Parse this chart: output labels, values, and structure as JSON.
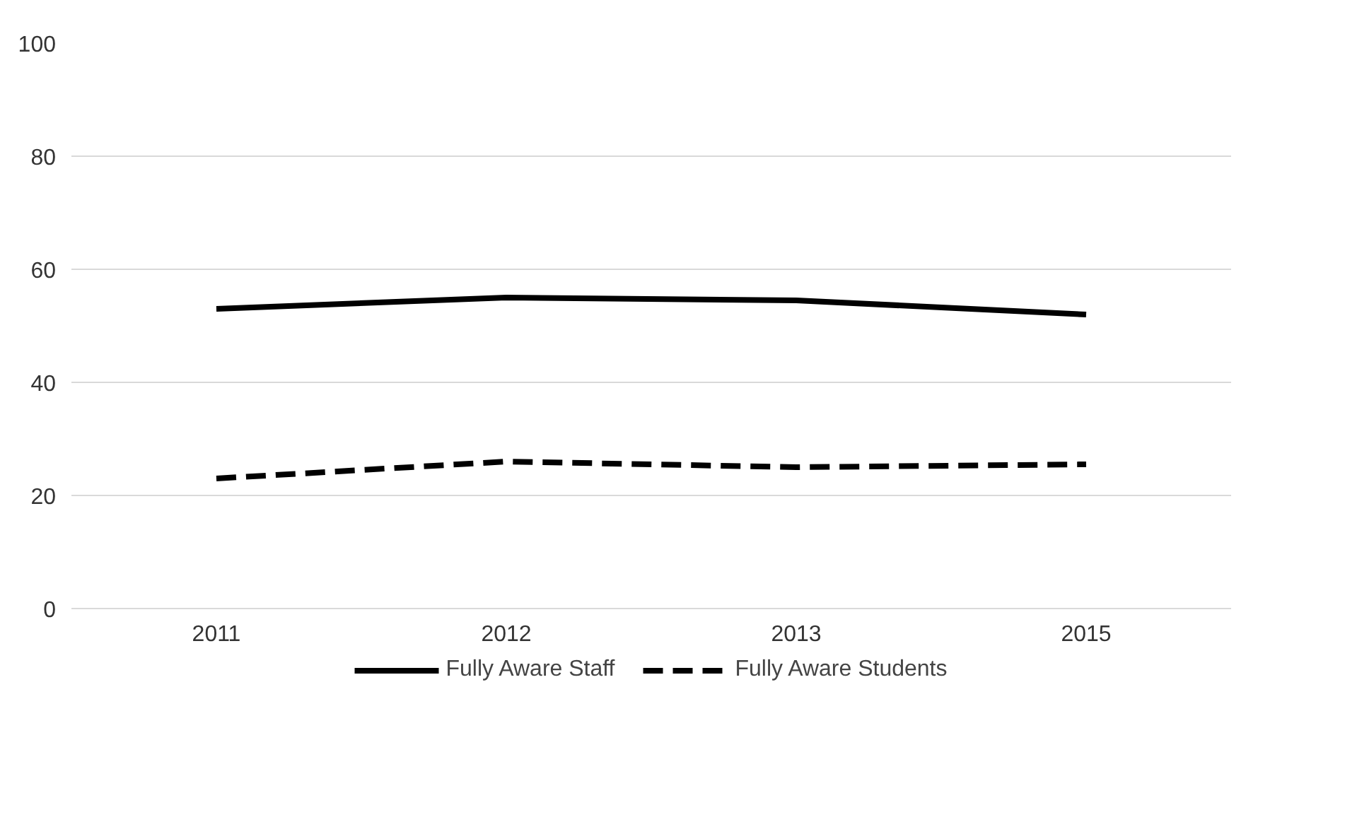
{
  "chart_data": {
    "type": "line",
    "categories": [
      "2011",
      "2012",
      "2013",
      "2015"
    ],
    "series": [
      {
        "name": "Fully Aware Staff",
        "color": "#000000",
        "values": [
          53,
          55,
          54.5,
          52
        ],
        "line_style": "solid"
      },
      {
        "name": "Fully Aware Students",
        "color": "#000000",
        "values": [
          23,
          26,
          25,
          25.5
        ],
        "line_style": "dashed"
      }
    ],
    "ylim": [
      0,
      100
    ],
    "yticks": [
      0,
      20,
      40,
      60,
      80,
      100
    ],
    "grid": "y",
    "legend": "bottom",
    "marker": "none"
  }
}
